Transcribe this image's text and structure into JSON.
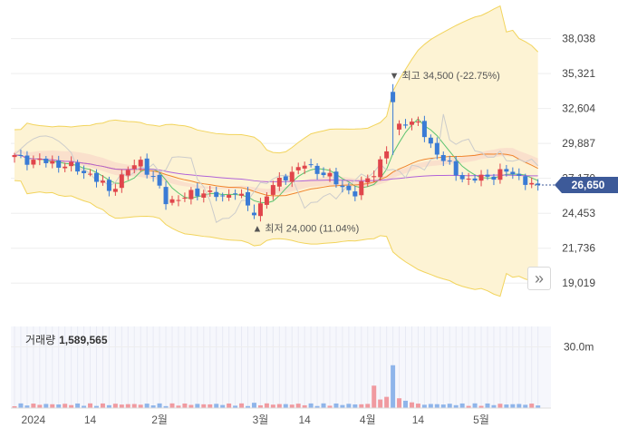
{
  "chart_data": [
    {
      "type": "candlestick",
      "ylim": [
        17200,
        40200
      ],
      "y_ticks": [
        "38,038",
        "35,321",
        "32,604",
        "29,887",
        "27,170",
        "24,453",
        "21,736",
        "19,019"
      ],
      "y_tick_values": [
        38038,
        35321,
        32604,
        29887,
        27170,
        24453,
        21736,
        19019
      ],
      "last_price": 26650,
      "last_price_label": "26,650",
      "high_marker": {
        "label": "최고 34,500 (-22.75%)",
        "date_index": 60,
        "value": 34500
      },
      "low_marker": {
        "label": "최저 24,000 (11.04%)",
        "date_index": 38,
        "value": 24000
      },
      "colors": {
        "up": "#e0454b",
        "down": "#3a7bd5",
        "bollinger_fill": "#fdf3d4",
        "bollinger_line": "#f2d45c",
        "cloud": "#f7c9c4",
        "price_tag": "#3d5a99"
      }
    },
    {
      "type": "bar",
      "series_name": "거래량",
      "value_label": "1,589,565",
      "y_tick": "30.0m",
      "y_tick_value": 30000000,
      "ylim": [
        0,
        40000000
      ],
      "x_tick_labels": [
        "2024",
        "14",
        "2월",
        "3월",
        "14",
        "4월",
        "14",
        "5월"
      ],
      "x_tick_indices": [
        3,
        12,
        23,
        39,
        46,
        56,
        64,
        74
      ]
    }
  ],
  "volume": {
    "label": "거래량",
    "value": "1,589,565"
  },
  "ui": {
    "nav_icon": "»"
  }
}
